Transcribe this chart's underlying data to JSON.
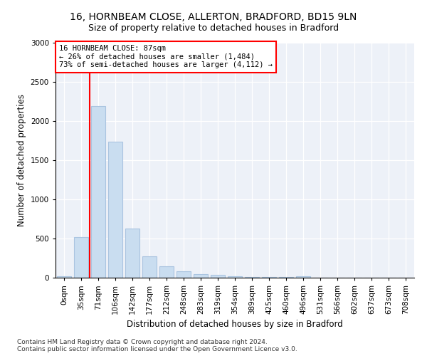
{
  "title_line1": "16, HORNBEAM CLOSE, ALLERTON, BRADFORD, BD15 9LN",
  "title_line2": "Size of property relative to detached houses in Bradford",
  "xlabel": "Distribution of detached houses by size in Bradford",
  "ylabel": "Number of detached properties",
  "bar_edge_color": "#aac4e0",
  "bar_face_color": "#c9ddf0",
  "background_color": "#edf1f8",
  "annotation_text": "16 HORNBEAM CLOSE: 87sqm\n← 26% of detached houses are smaller (1,484)\n73% of semi-detached houses are larger (4,112) →",
  "categories": [
    "0sqm",
    "35sqm",
    "71sqm",
    "106sqm",
    "142sqm",
    "177sqm",
    "212sqm",
    "248sqm",
    "283sqm",
    "319sqm",
    "354sqm",
    "389sqm",
    "425sqm",
    "460sqm",
    "496sqm",
    "531sqm",
    "566sqm",
    "602sqm",
    "637sqm",
    "673sqm",
    "708sqm"
  ],
  "values": [
    20,
    520,
    2195,
    1740,
    630,
    270,
    145,
    80,
    50,
    40,
    15,
    10,
    5,
    5,
    20,
    3,
    3,
    3,
    3,
    3,
    3
  ],
  "ylim": [
    0,
    3000
  ],
  "yticks": [
    0,
    500,
    1000,
    1500,
    2000,
    2500,
    3000
  ],
  "footnote": "Contains HM Land Registry data © Crown copyright and database right 2024.\nContains public sector information licensed under the Open Government Licence v3.0.",
  "title_fontsize": 10,
  "subtitle_fontsize": 9,
  "axis_label_fontsize": 8.5,
  "tick_fontsize": 7.5,
  "footnote_fontsize": 6.5
}
